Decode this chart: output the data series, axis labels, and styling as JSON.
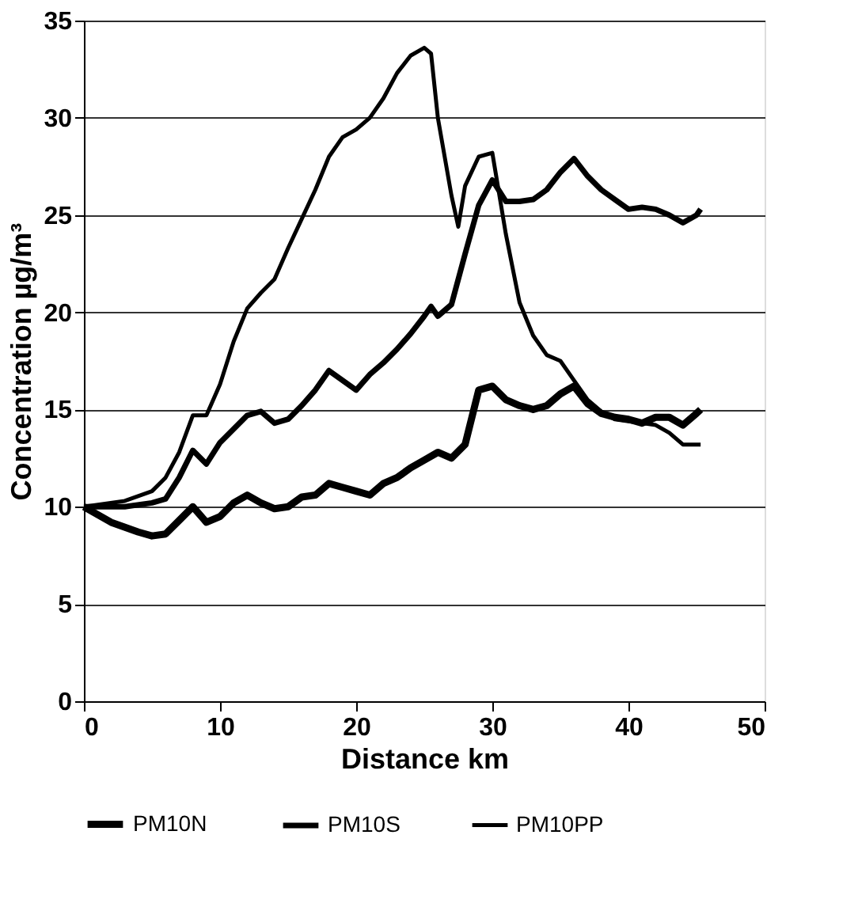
{
  "chart_data": {
    "type": "line",
    "xlabel": "Distance  km",
    "ylabel": "Concentration µg/m³",
    "xlim": [
      0,
      50
    ],
    "xticks": [
      0,
      10,
      20,
      30,
      40,
      50
    ],
    "ylim": [
      0,
      35
    ],
    "yticks": [
      0,
      5,
      10,
      15,
      20,
      25,
      30,
      35
    ],
    "grid": "y",
    "legend": "bottom",
    "marker": "none",
    "line_style": "solid",
    "series": [
      {
        "name": "PM10N",
        "color": "#000000",
        "x": [
          0,
          2,
          4,
          5,
          6,
          7,
          8,
          9,
          10,
          11,
          12,
          13,
          14,
          15,
          16,
          17,
          18,
          19,
          20,
          21,
          22,
          23,
          24,
          25,
          26,
          27,
          28,
          29,
          30,
          31,
          32,
          33,
          34,
          35,
          36,
          37,
          38,
          39,
          40,
          41,
          42,
          43,
          44,
          45,
          45.3
        ],
        "values": [
          10,
          9.2,
          8.7,
          8.5,
          8.6,
          9.3,
          10,
          9.2,
          9.5,
          10.2,
          10.6,
          10.2,
          9.9,
          10,
          10.5,
          10.6,
          11.2,
          11,
          10.8,
          10.6,
          11.2,
          11.5,
          12,
          12.4,
          12.8,
          12.5,
          13.2,
          16,
          16.2,
          15.5,
          15.2,
          15,
          15.2,
          15.8,
          16.2,
          15.3,
          14.8,
          14.6,
          14.5,
          14.3,
          14.6,
          14.6,
          14.2,
          14.8,
          15
        ]
      },
      {
        "name": "PM10S",
        "color": "#000000",
        "x": [
          0,
          3,
          5,
          6,
          7,
          8,
          9,
          10,
          11,
          12,
          13,
          14,
          15,
          16,
          17,
          18,
          19,
          20,
          21,
          22,
          23,
          24,
          25,
          25.5,
          26,
          27,
          28,
          29,
          30,
          31,
          32,
          33,
          34,
          35,
          36,
          37,
          38,
          39,
          40,
          41,
          42,
          43,
          44,
          45,
          45.3
        ],
        "values": [
          10,
          10,
          10.2,
          10.4,
          11.5,
          12.9,
          12.2,
          13.3,
          14,
          14.7,
          14.9,
          14.3,
          14.5,
          15.2,
          16,
          17,
          16.5,
          16,
          16.8,
          17.4,
          18.1,
          18.9,
          19.8,
          20.3,
          19.8,
          20.4,
          23,
          25.5,
          26.8,
          25.7,
          25.7,
          25.8,
          26.3,
          27.2,
          27.9,
          27,
          26.3,
          25.8,
          25.3,
          25.4,
          25.3,
          25,
          24.6,
          25,
          25.3
        ]
      },
      {
        "name": "PM10PP",
        "color": "#000000",
        "x": [
          0,
          3,
          5,
          6,
          7,
          8,
          9,
          10,
          11,
          12,
          13,
          14,
          15,
          16,
          17,
          18,
          19,
          20,
          21,
          22,
          23,
          24,
          25,
          25.5,
          26,
          27,
          27.5,
          28,
          29,
          30,
          31,
          32,
          33,
          34,
          35,
          36,
          37,
          38,
          39,
          40,
          41,
          42,
          43,
          44,
          45.3
        ],
        "values": [
          10,
          10.3,
          10.8,
          11.5,
          12.8,
          14.7,
          14.7,
          16.3,
          18.5,
          20.2,
          21,
          21.7,
          23.3,
          24.8,
          26.3,
          28,
          29,
          29.4,
          30,
          31,
          32.3,
          33.2,
          33.6,
          33.3,
          30,
          26,
          24.4,
          26.5,
          28,
          28.2,
          24,
          20.5,
          18.8,
          17.8,
          17.5,
          16.5,
          15.5,
          14.9,
          14.5,
          14.4,
          14.3,
          14.2,
          13.8,
          13.2,
          13.2
        ]
      }
    ]
  }
}
